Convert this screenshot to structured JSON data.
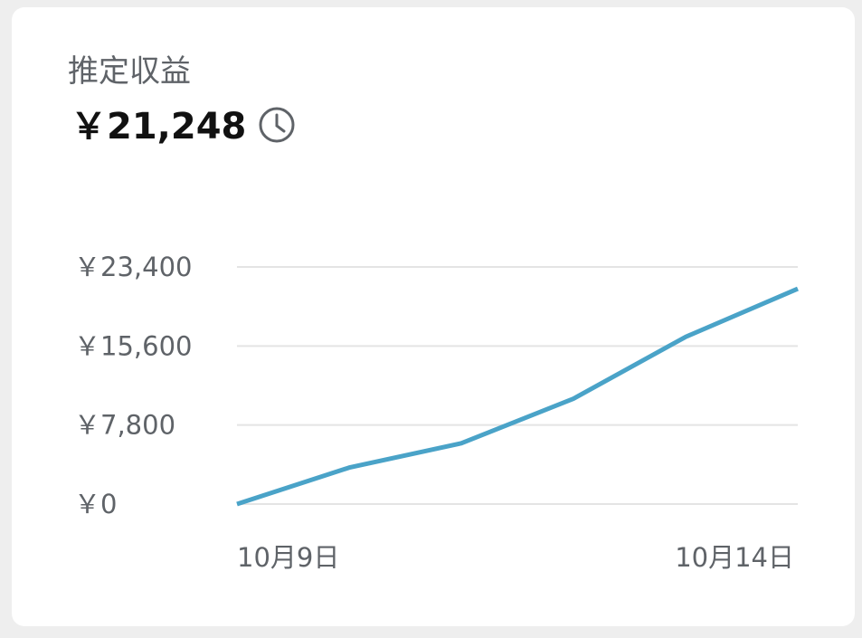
{
  "header": {
    "title": "推定収益",
    "amount": "￥21,248"
  },
  "chart_data": {
    "type": "line",
    "categories": [
      "10月9日",
      null,
      null,
      null,
      null,
      "10月14日"
    ],
    "values": [
      0,
      3600,
      6000,
      10400,
      16500,
      21248
    ],
    "color": "#4aa3c8",
    "ylim": [
      0,
      23400
    ],
    "yticks": [
      {
        "value": 0,
        "label": "￥0"
      },
      {
        "value": 7800,
        "label": "￥7,800"
      },
      {
        "value": 15600,
        "label": "￥15,600"
      },
      {
        "value": 23400,
        "label": "￥23,400"
      }
    ],
    "grid": true
  }
}
